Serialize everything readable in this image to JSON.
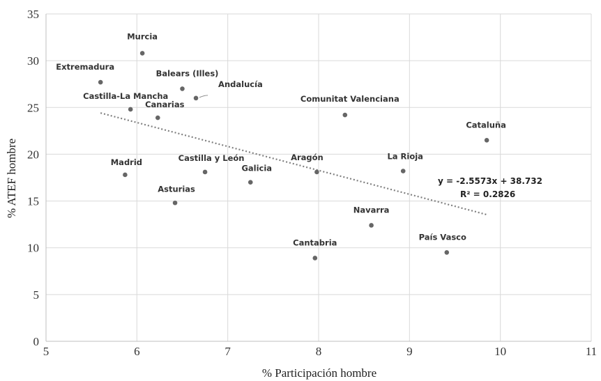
{
  "chart_data": {
    "type": "scatter",
    "xlabel": "% Participación hombre",
    "ylabel": "% ATEF hombre",
    "xlim": [
      5,
      11
    ],
    "ylim": [
      0,
      35
    ],
    "x_ticks": [
      5,
      6,
      7,
      8,
      9,
      10,
      11
    ],
    "y_ticks": [
      0,
      5,
      10,
      15,
      20,
      25,
      30,
      35
    ],
    "grid": true,
    "points": [
      {
        "label": "Murcia",
        "x": 6.06,
        "y": 30.8
      },
      {
        "label": "Extremadura",
        "x": 5.6,
        "y": 27.7
      },
      {
        "label": "Balears (Illes)",
        "x": 6.5,
        "y": 27.0
      },
      {
        "label": "Andalucía",
        "x": 6.65,
        "y": 26.0
      },
      {
        "label": "Castilla-La Mancha",
        "x": 5.93,
        "y": 24.8
      },
      {
        "label": "Canarias",
        "x": 6.23,
        "y": 23.9
      },
      {
        "label": "Comunitat Valenciana",
        "x": 8.29,
        "y": 24.2
      },
      {
        "label": "Cataluña",
        "x": 9.85,
        "y": 21.5
      },
      {
        "label": "Madrid",
        "x": 5.87,
        "y": 17.8
      },
      {
        "label": "Castilla y León",
        "x": 6.75,
        "y": 18.1
      },
      {
        "label": "Galicia",
        "x": 7.25,
        "y": 17.0
      },
      {
        "label": "Aragón",
        "x": 7.98,
        "y": 18.1
      },
      {
        "label": "La Rioja",
        "x": 8.93,
        "y": 18.2
      },
      {
        "label": "Asturias",
        "x": 6.42,
        "y": 14.8
      },
      {
        "label": "Navarra",
        "x": 8.58,
        "y": 12.4
      },
      {
        "label": "Cantabria",
        "x": 7.96,
        "y": 8.9
      },
      {
        "label": "País Vasco",
        "x": 9.41,
        "y": 9.5
      }
    ],
    "trendline": {
      "type": "linear",
      "slope": -2.5573,
      "intercept": 38.732,
      "x_range": [
        5.6,
        9.85
      ],
      "equation_label": "y = -2.5573x + 38.732",
      "r2_label": "R² = 0.2826"
    }
  }
}
